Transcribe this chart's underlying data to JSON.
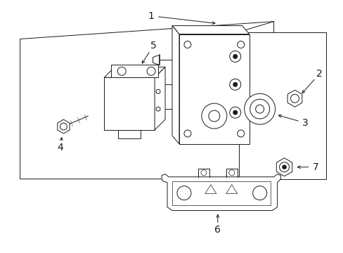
{
  "background_color": "#ffffff",
  "line_color": "#1a1a1a",
  "fig_width": 4.89,
  "fig_height": 3.6,
  "dpi": 100,
  "label_fontsize": 10,
  "lw": 0.7
}
